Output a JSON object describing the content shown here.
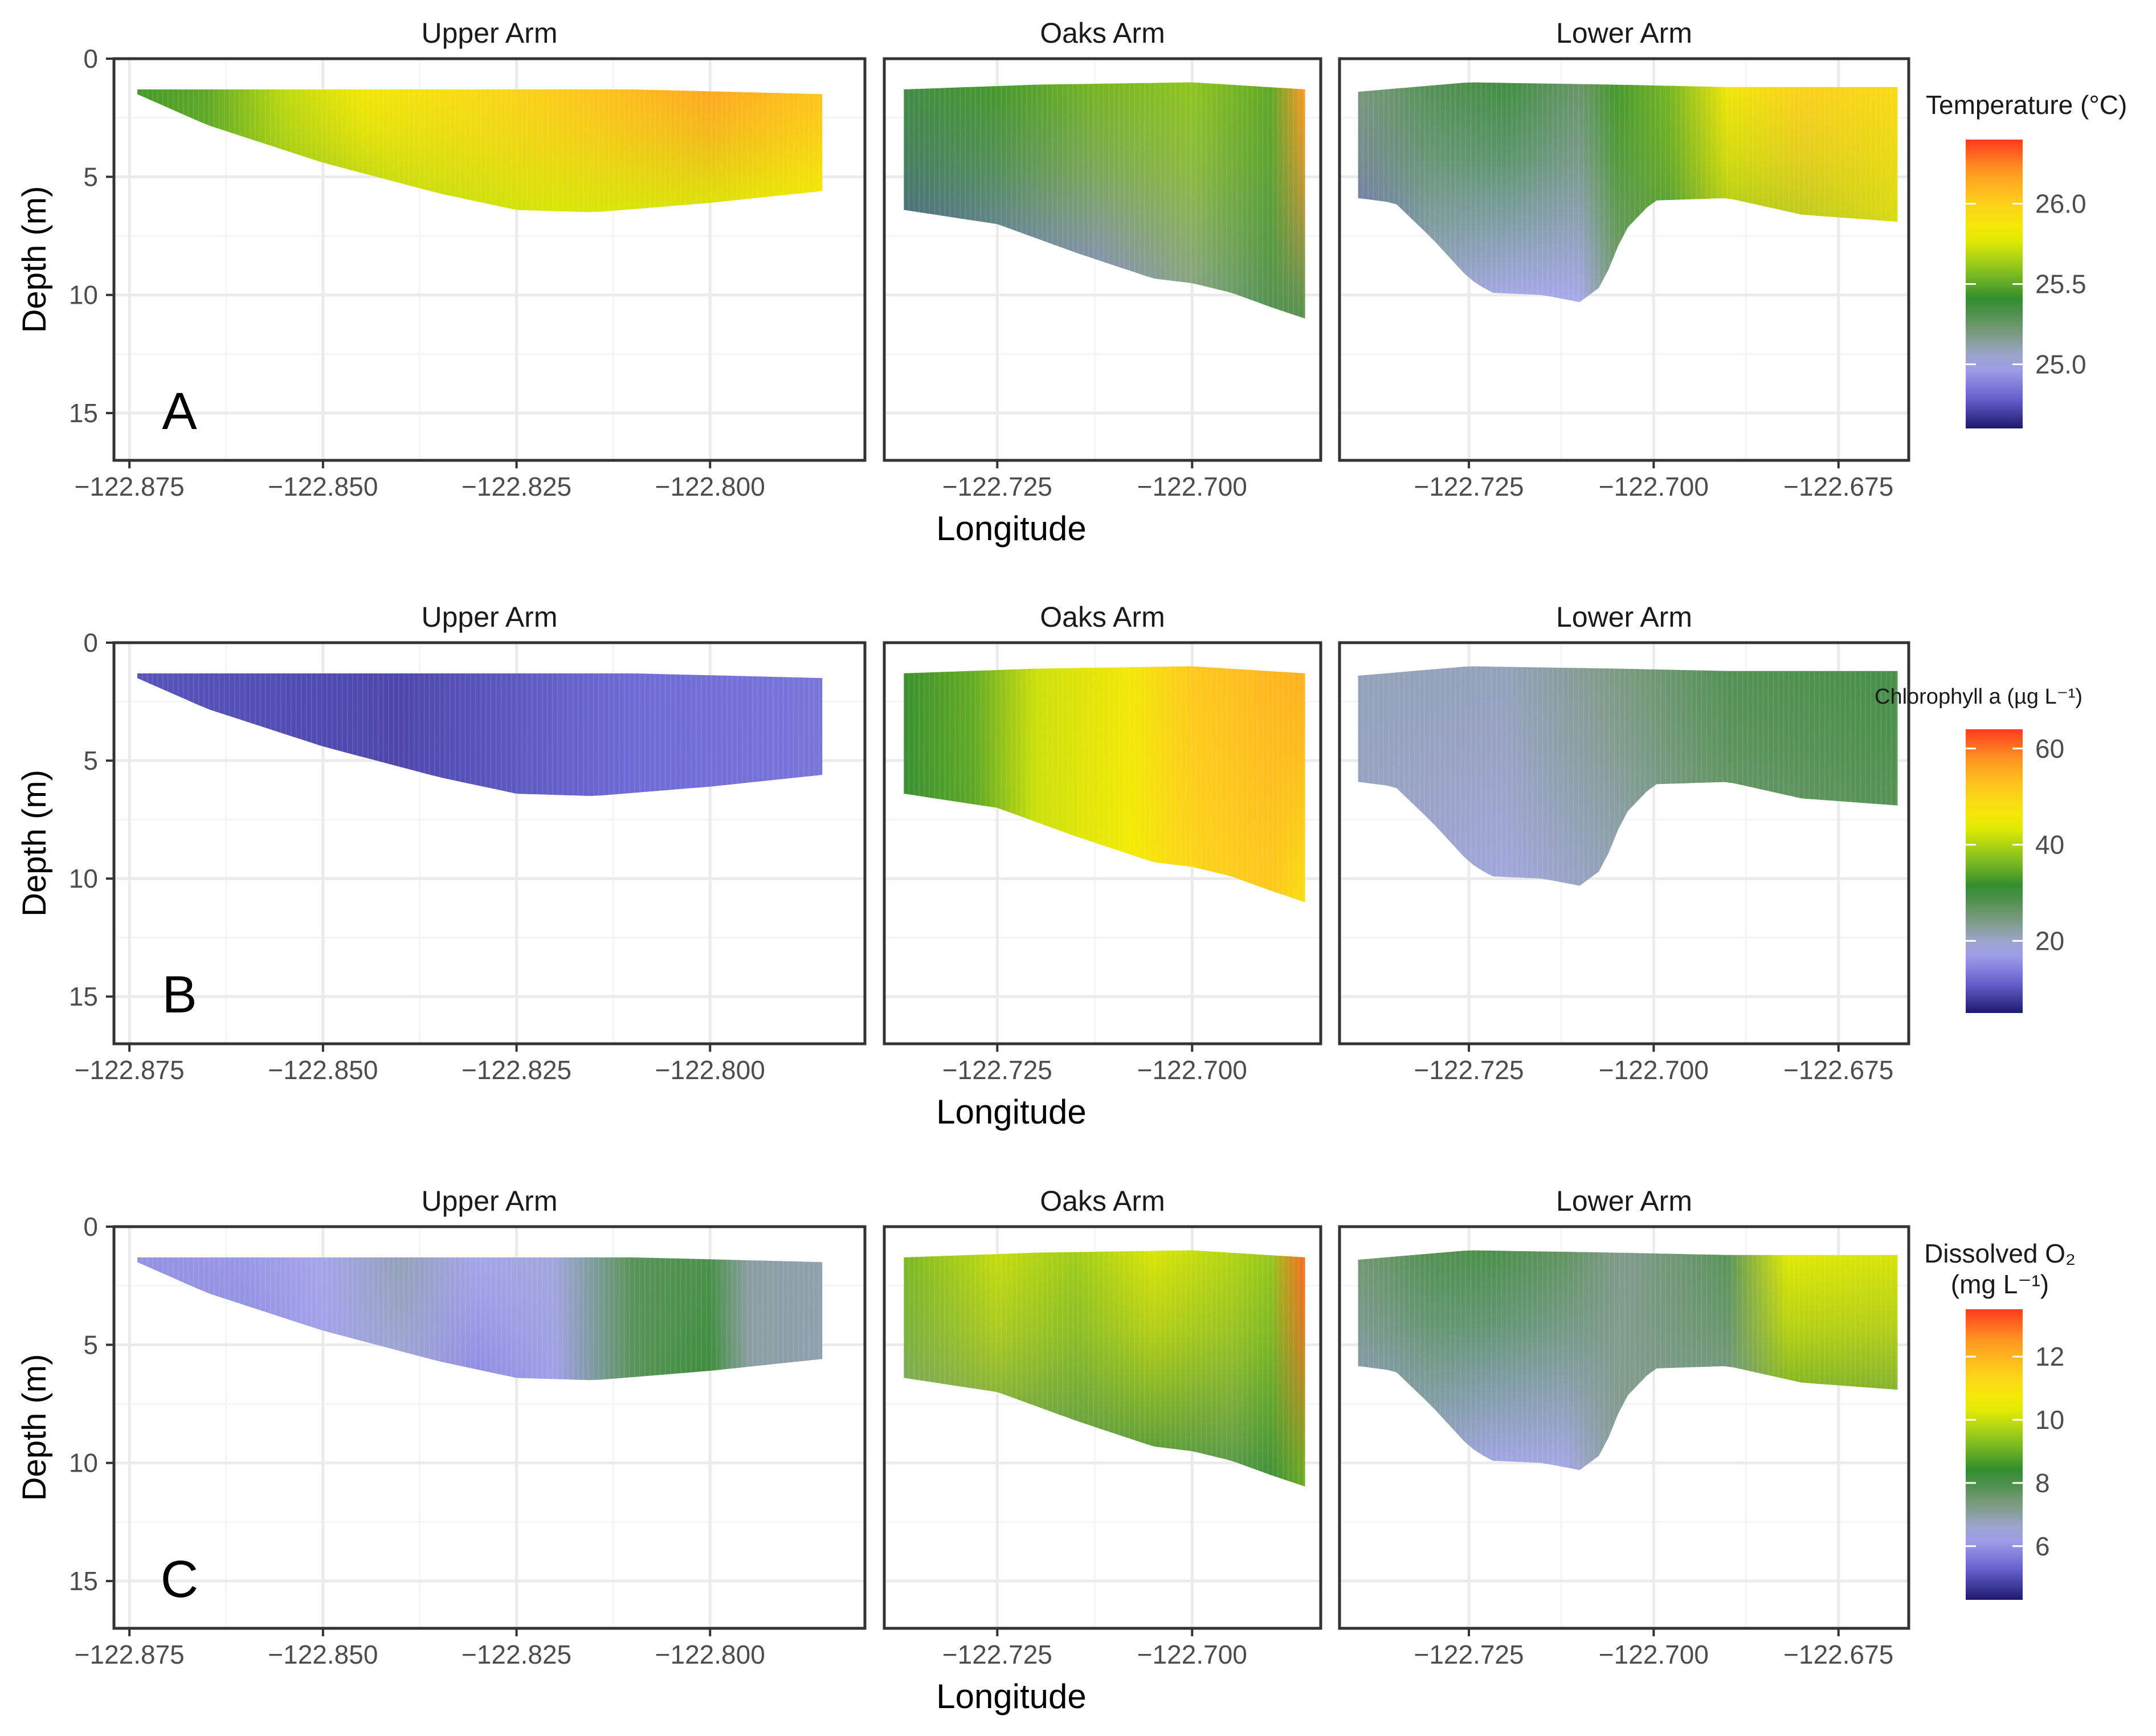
{
  "chart_data": {
    "type": "heatmap",
    "description_kind": "depth-profile sections along longitude, faceted by reservoir arm",
    "facets": [
      "Upper Arm",
      "Oaks Arm",
      "Lower Arm"
    ],
    "xlabel": "Longitude",
    "ylabel": "Depth (m)",
    "y_ticks": [
      0,
      5,
      10,
      15
    ],
    "y_tick_labels": [
      "0",
      "5",
      "10",
      "15"
    ],
    "ylim": [
      0,
      17
    ],
    "y_reversed": true,
    "facet_axes": [
      {
        "xlim": [
          -122.877,
          -122.78
        ],
        "ticks": [
          -122.875,
          -122.85,
          -122.825,
          -122.8
        ],
        "tick_labels": [
          "−122.875",
          "−122.850",
          "−122.825",
          "−122.800"
        ]
      },
      {
        "xlim": [
          -122.7395,
          -122.6835
        ],
        "ticks": [
          -122.725,
          -122.7
        ],
        "tick_labels": [
          "−122.725",
          "−122.700"
        ]
      },
      {
        "xlim": [
          -122.7425,
          -122.6655
        ],
        "ticks": [
          -122.725,
          -122.7,
          -122.675
        ],
        "tick_labels": [
          "−122.725",
          "−122.700",
          "−122.675"
        ]
      }
    ],
    "facet_shapes": [
      {
        "lon_left": -122.874,
        "lon_right": -122.7855,
        "top_depth": [
          [
            -122.874,
            1.3
          ],
          [
            -122.84,
            1.3
          ],
          [
            -122.81,
            1.3
          ],
          [
            -122.7855,
            1.5
          ]
        ],
        "bottom_depth": [
          [
            -122.874,
            1.5
          ],
          [
            -122.865,
            2.8
          ],
          [
            -122.85,
            4.4
          ],
          [
            -122.835,
            5.7
          ],
          [
            -122.825,
            6.4
          ],
          [
            -122.815,
            6.5
          ],
          [
            -122.8,
            6.1
          ],
          [
            -122.7855,
            5.6
          ]
        ]
      },
      {
        "lon_left": -122.737,
        "lon_right": -122.6855,
        "top_depth": [
          [
            -122.737,
            1.3
          ],
          [
            -122.72,
            1.1
          ],
          [
            -122.7,
            1.0
          ],
          [
            -122.6855,
            1.3
          ]
        ],
        "bottom_depth": [
          [
            -122.737,
            6.4
          ],
          [
            -122.725,
            7.0
          ],
          [
            -122.715,
            8.2
          ],
          [
            -122.705,
            9.3
          ],
          [
            -122.7,
            9.5
          ],
          [
            -122.695,
            9.9
          ],
          [
            -122.69,
            10.5
          ],
          [
            -122.6855,
            11.0
          ]
        ]
      },
      {
        "lon_left": -122.74,
        "lon_right": -122.667,
        "top_depth": [
          [
            -122.74,
            1.4
          ],
          [
            -122.725,
            1.0
          ],
          [
            -122.705,
            1.1
          ],
          [
            -122.69,
            1.2
          ],
          [
            -122.667,
            1.2
          ]
        ],
        "bottom_depth": [
          [
            -122.74,
            5.9
          ],
          [
            -122.735,
            6.1
          ],
          [
            -122.73,
            7.6
          ],
          [
            -122.725,
            9.3
          ],
          [
            -122.722,
            9.9
          ],
          [
            -122.715,
            10.0
          ],
          [
            -122.71,
            10.3
          ],
          [
            -122.707,
            9.6
          ],
          [
            -122.704,
            7.3
          ],
          [
            -122.7,
            6.0
          ],
          [
            -122.69,
            5.9
          ],
          [
            -122.68,
            6.6
          ],
          [
            -122.667,
            6.9
          ]
        ]
      }
    ],
    "rows": [
      {
        "panel_label": "A",
        "legend": {
          "title": "Temperature (°C)",
          "min": 24.6,
          "max": 26.4,
          "ticks": [
            25.0,
            25.5,
            26.0
          ],
          "tick_labels": [
            "25.0",
            "25.5",
            "26.0"
          ]
        },
        "facets": [
          {
            "name": "Upper Arm",
            "surface": [
              [
                -122.874,
                25.45
              ],
              [
                -122.865,
                25.5
              ],
              [
                -122.855,
                25.7
              ],
              [
                -122.845,
                25.85
              ],
              [
                -122.83,
                25.95
              ],
              [
                -122.815,
                26.05
              ],
              [
                -122.8,
                26.15
              ],
              [
                -122.7855,
                26.05
              ]
            ],
            "bottom": [
              [
                -122.874,
                25.45
              ],
              [
                -122.86,
                25.55
              ],
              [
                -122.84,
                25.7
              ],
              [
                -122.82,
                25.75
              ],
              [
                -122.8,
                25.75
              ],
              [
                -122.7855,
                25.8
              ]
            ]
          },
          {
            "name": "Oaks Arm",
            "surface": [
              [
                -122.737,
                25.35
              ],
              [
                -122.725,
                25.45
              ],
              [
                -122.712,
                25.55
              ],
              [
                -122.7,
                25.6
              ],
              [
                -122.69,
                25.5
              ],
              [
                -122.6855,
                26.2
              ]
            ],
            "bottom": [
              [
                -122.737,
                24.75
              ],
              [
                -122.725,
                24.85
              ],
              [
                -122.712,
                24.9
              ],
              [
                -122.7,
                25.15
              ],
              [
                -122.69,
                25.3
              ],
              [
                -122.6855,
                25.3
              ]
            ]
          },
          {
            "name": "Lower Arm",
            "surface": [
              [
                -122.74,
                25.2
              ],
              [
                -122.73,
                25.3
              ],
              [
                -122.72,
                25.35
              ],
              [
                -122.71,
                25.25
              ],
              [
                -122.705,
                25.45
              ],
              [
                -122.698,
                25.55
              ],
              [
                -122.69,
                25.85
              ],
              [
                -122.68,
                26.0
              ],
              [
                -122.667,
                25.95
              ]
            ],
            "bottom": [
              [
                -122.74,
                24.8
              ],
              [
                -122.73,
                25.05
              ],
              [
                -122.72,
                25.0
              ],
              [
                -122.71,
                25.0
              ],
              [
                -122.705,
                25.2
              ],
              [
                -122.698,
                25.35
              ],
              [
                -122.69,
                25.55
              ],
              [
                -122.68,
                25.6
              ],
              [
                -122.667,
                25.7
              ]
            ]
          }
        ]
      },
      {
        "panel_label": "B",
        "legend": {
          "title": "Chlorophyll a (µg L⁻¹)",
          "min": 5,
          "max": 64,
          "ticks": [
            20,
            40,
            60
          ],
          "tick_labels": [
            "20",
            "40",
            "60"
          ]
        },
        "facets": [
          {
            "name": "Upper Arm",
            "surface": [
              [
                -122.874,
                10
              ],
              [
                -122.84,
                9
              ],
              [
                -122.81,
                12
              ],
              [
                -122.7855,
                13
              ]
            ],
            "bottom": [
              [
                -122.874,
                10
              ],
              [
                -122.84,
                9
              ],
              [
                -122.81,
                12
              ],
              [
                -122.7855,
                13
              ]
            ]
          },
          {
            "name": "Oaks Arm",
            "surface": [
              [
                -122.737,
                32
              ],
              [
                -122.728,
                35
              ],
              [
                -122.72,
                42
              ],
              [
                -122.708,
                46
              ],
              [
                -122.7,
                52
              ],
              [
                -122.69,
                54
              ],
              [
                -122.6855,
                55
              ]
            ],
            "bottom": [
              [
                -122.737,
                30
              ],
              [
                -122.728,
                34
              ],
              [
                -122.72,
                42
              ],
              [
                -122.708,
                45
              ],
              [
                -122.7,
                50
              ],
              [
                -122.69,
                52
              ],
              [
                -122.6855,
                48
              ]
            ]
          },
          {
            "name": "Lower Arm",
            "surface": [
              [
                -122.74,
                21
              ],
              [
                -122.72,
                21
              ],
              [
                -122.706,
                24
              ],
              [
                -122.69,
                28
              ],
              [
                -122.667,
                29
              ]
            ],
            "bottom": [
              [
                -122.74,
                20
              ],
              [
                -122.72,
                19
              ],
              [
                -122.706,
                21
              ],
              [
                -122.69,
                25
              ],
              [
                -122.667,
                27
              ]
            ]
          }
        ]
      },
      {
        "panel_label": "C",
        "legend": {
          "title": "Dissolved O₂",
          "title2": "(mg L⁻¹)",
          "min": 4.3,
          "max": 13.5,
          "ticks": [
            6,
            8,
            10,
            12
          ],
          "tick_labels": [
            "6",
            "8",
            "10",
            "12"
          ]
        },
        "facets": [
          {
            "name": "Upper Arm",
            "surface": [
              [
                -122.874,
                6.0
              ],
              [
                -122.86,
                6.1
              ],
              [
                -122.85,
                6.3
              ],
              [
                -122.84,
                6.8
              ],
              [
                -122.83,
                6.3
              ],
              [
                -122.82,
                6.5
              ],
              [
                -122.81,
                7.8
              ],
              [
                -122.8,
                8.0
              ],
              [
                -122.795,
                7.0
              ],
              [
                -122.7855,
                6.9
              ]
            ],
            "bottom": [
              [
                -122.874,
                5.9
              ],
              [
                -122.86,
                5.8
              ],
              [
                -122.85,
                6.2
              ],
              [
                -122.84,
                6.5
              ],
              [
                -122.83,
                5.9
              ],
              [
                -122.82,
                6.2
              ],
              [
                -122.81,
                7.8
              ],
              [
                -122.8,
                8.2
              ],
              [
                -122.795,
                7.0
              ],
              [
                -122.7855,
                6.9
              ]
            ]
          },
          {
            "name": "Oaks Arm",
            "surface": [
              [
                -122.737,
                9.2
              ],
              [
                -122.725,
                10.0
              ],
              [
                -122.715,
                9.6
              ],
              [
                -122.705,
                10.2
              ],
              [
                -122.695,
                9.8
              ],
              [
                -122.69,
                9.5
              ],
              [
                -122.6855,
                13.0
              ]
            ],
            "bottom": [
              [
                -122.737,
                7.2
              ],
              [
                -122.725,
                7.8
              ],
              [
                -122.715,
                7.9
              ],
              [
                -122.705,
                8.1
              ],
              [
                -122.695,
                7.9
              ],
              [
                -122.69,
                8.2
              ],
              [
                -122.6855,
                9.0
              ]
            ]
          },
          {
            "name": "Lower Arm",
            "surface": [
              [
                -122.74,
                7.5
              ],
              [
                -122.73,
                7.9
              ],
              [
                -122.722,
                8.0
              ],
              [
                -122.712,
                7.7
              ],
              [
                -122.704,
                7.2
              ],
              [
                -122.69,
                7.8
              ],
              [
                -122.682,
                10.3
              ],
              [
                -122.667,
                10.2
              ]
            ],
            "bottom": [
              [
                -122.74,
                6.2
              ],
              [
                -122.73,
                6.6
              ],
              [
                -122.722,
                6.3
              ],
              [
                -122.712,
                6.4
              ],
              [
                -122.704,
                7.2
              ],
              [
                -122.69,
                7.0
              ],
              [
                -122.682,
                8.2
              ],
              [
                -122.667,
                8.0
              ]
            ]
          }
        ]
      }
    ]
  },
  "colors": {
    "scale": [
      "#1d1a6e",
      "#6b66d4",
      "#a9a9ec",
      "#7a9a7a",
      "#2e8b2e",
      "#8fc61e",
      "#f0f000",
      "#ffd21c",
      "#ff9b22",
      "#ff3b1f"
    ],
    "panel_border": "#333333",
    "grid_major": "#ebebeb",
    "grid_minor": "#f5f5f5",
    "axis_text": "#4d4d4d",
    "title_text": "#000000"
  }
}
